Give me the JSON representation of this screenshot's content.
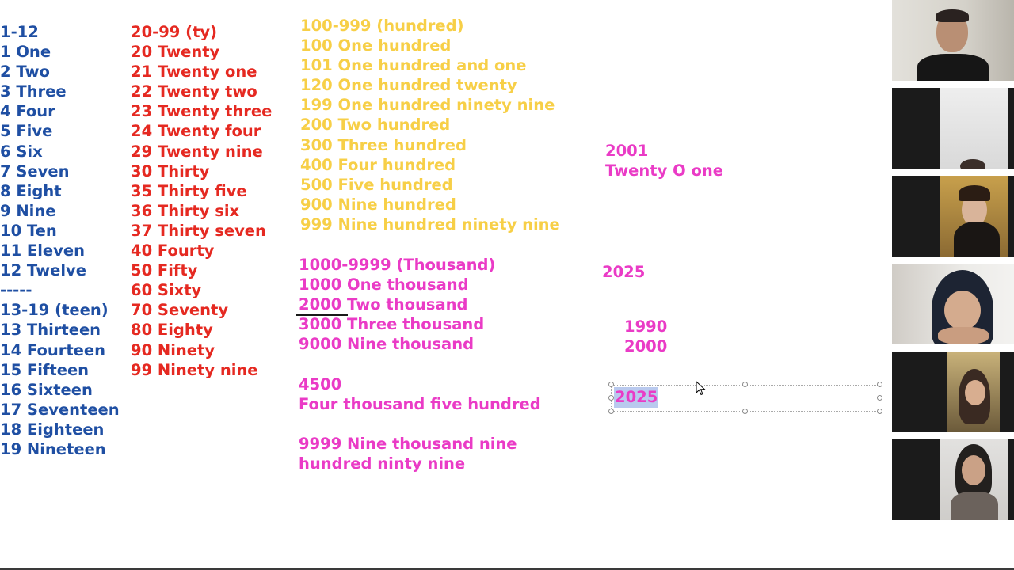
{
  "slide": {
    "col1": [
      "1-12",
      "1 One",
      "2 Two",
      "3 Three",
      "4 Four",
      "5 Five",
      "6 Six",
      "7 Seven",
      "8 Eight",
      "9 Nine",
      "10 Ten",
      "11 Eleven",
      "12 Twelve",
      "-----",
      "13-19 (teen)",
      "13 Thirteen",
      "14 Fourteen",
      "15 Fifteen",
      "16 Sixteen",
      "17 Seventeen",
      "18 Eighteen",
      "19 Nineteen"
    ],
    "col2": [
      "20-99 (ty)",
      "20 Twenty",
      "21 Twenty one",
      "22 Twenty two",
      "23 Twenty three",
      "24 Twenty four",
      "29 Twenty nine",
      "30 Thirty",
      "35 Thirty five",
      "36 Thirty six",
      "37 Thirty seven",
      "40 Fourty",
      "50 Fifty",
      "60 Sixty",
      "70 Seventy",
      "80 Eighty",
      "90 Ninety",
      "99 Ninety nine"
    ],
    "col3_hundreds": [
      "100-999 (hundred)",
      "100 One hundred",
      "101 One hundred and one",
      "120 One hundred twenty",
      "199 One hundred ninety nine",
      "200 Two hundred",
      "300 Three hundred",
      "400 Four hundred",
      "500 Five hundred",
      "900 Nine hundred",
      "999 Nine hundred ninety nine"
    ],
    "col3_thousands": [
      "1000-9999 (Thousand)",
      "1000 One thousand",
      "2000 Two thousand",
      "3000 Three thousand",
      "9000 Nine thousand"
    ],
    "example_4500": [
      "4500",
      "Four thousand five hundred"
    ],
    "example_9999": [
      "9999 Nine thousand nine",
      "hundred ninty nine"
    ],
    "years": {
      "y2001": "2001",
      "y2001_words": "Twenty O one",
      "y2025": "2025",
      "y1990": "1990",
      "y2000": "2000",
      "selected_text": "2025"
    }
  },
  "colors": {
    "blue": "#1f4fa3",
    "red": "#e52921",
    "yellow": "#f7cf47",
    "pink": "#ea3bc6",
    "selection": "#b9c9ee"
  },
  "icons": [
    "mouse-pointer-icon"
  ]
}
